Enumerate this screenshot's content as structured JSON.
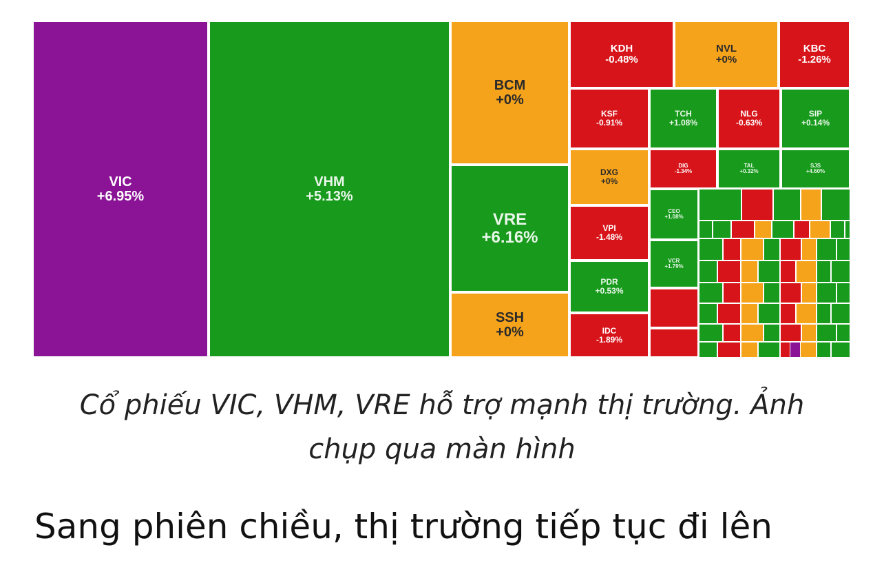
{
  "caption": {
    "line1": "Cổ phiếu VIC, VHM, VRE hỗ trợ mạnh thị trường. Ảnh",
    "line2": "chụp qua màn hình"
  },
  "body_text": "Sang phiên chiều, thị trường tiếp tục đi lên",
  "colors": {
    "green": "#189a1c",
    "red": "#d7141a",
    "orange": "#f6a31c",
    "purple": "#8a1396"
  },
  "treemap": {
    "tiles": [
      {
        "symbol": "VIC",
        "change": "+6.95%"
      },
      {
        "symbol": "VHM",
        "change": "+5.13%"
      },
      {
        "symbol": "BCM",
        "change": "+0%"
      },
      {
        "symbol": "VRE",
        "change": "+6.16%"
      },
      {
        "symbol": "SSH",
        "change": "+0%"
      },
      {
        "symbol": "KDH",
        "change": "-0.48%"
      },
      {
        "symbol": "NVL",
        "change": "+0%"
      },
      {
        "symbol": "KBC",
        "change": "-1.26%"
      },
      {
        "symbol": "KSF",
        "change": "-0.91%"
      },
      {
        "symbol": "TCH",
        "change": "+1.08%"
      },
      {
        "symbol": "NLG",
        "change": "-0.63%"
      },
      {
        "symbol": "SIP",
        "change": "+0.14%"
      },
      {
        "symbol": "DXG",
        "change": "+0%"
      },
      {
        "symbol": "DIG",
        "change": "-1.34%"
      },
      {
        "symbol": "TAL",
        "change": "+0.32%"
      },
      {
        "symbol": "SJS",
        "change": "+4.60%"
      },
      {
        "symbol": "CEO",
        "change": "+1.08%"
      },
      {
        "symbol": "VPI",
        "change": "-1.48%"
      },
      {
        "symbol": "VCR",
        "change": "+1.79%"
      },
      {
        "symbol": "PDR",
        "change": "+0.53%"
      },
      {
        "symbol": "IDC",
        "change": "-1.89%"
      }
    ]
  }
}
